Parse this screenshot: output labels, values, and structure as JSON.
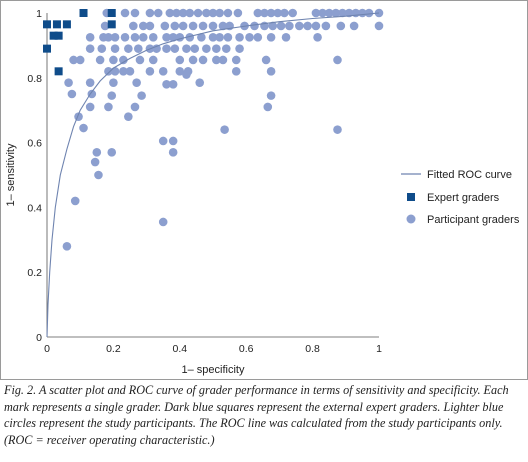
{
  "chart_data": {
    "type": "scatter",
    "xlabel": "1– specificity",
    "ylabel": "1– sensitivity",
    "xlim": [
      0,
      1
    ],
    "ylim": [
      0,
      1
    ],
    "x_ticks": [
      "0",
      "0.2",
      "0.4",
      "0.6",
      "0.8",
      "1"
    ],
    "y_ticks": [
      "0",
      "0.2",
      "0.4",
      "0.6",
      "0.8",
      "1"
    ],
    "grid": false,
    "legend_position": "right",
    "series": [
      {
        "name": "Fitted ROC curve",
        "kind": "line",
        "color": "#6f84b0",
        "points": [
          [
            0,
            0
          ],
          [
            0.003,
            0.1
          ],
          [
            0.008,
            0.2
          ],
          [
            0.015,
            0.3
          ],
          [
            0.025,
            0.4
          ],
          [
            0.04,
            0.5
          ],
          [
            0.06,
            0.58
          ],
          [
            0.08,
            0.65
          ],
          [
            0.1,
            0.7
          ],
          [
            0.13,
            0.75
          ],
          [
            0.16,
            0.79
          ],
          [
            0.2,
            0.83
          ],
          [
            0.25,
            0.86
          ],
          [
            0.3,
            0.885
          ],
          [
            0.35,
            0.905
          ],
          [
            0.4,
            0.92
          ],
          [
            0.5,
            0.945
          ],
          [
            0.6,
            0.96
          ],
          [
            0.7,
            0.973
          ],
          [
            0.8,
            0.983
          ],
          [
            0.9,
            0.99
          ],
          [
            1.0,
            1.0
          ]
        ]
      },
      {
        "name": "Expert graders",
        "kind": "square",
        "color": "#0f4c8a",
        "points": [
          [
            0.0,
            0.965
          ],
          [
            0.03,
            0.965
          ],
          [
            0.06,
            0.965
          ],
          [
            0.11,
            1.0
          ],
          [
            0.195,
            1.0
          ],
          [
            0.195,
            0.965
          ],
          [
            0.02,
            0.93
          ],
          [
            0.035,
            0.93
          ],
          [
            0.0,
            0.89
          ],
          [
            0.035,
            0.82
          ]
        ]
      },
      {
        "name": "Participant graders",
        "kind": "circle",
        "color": "#8c9fcf",
        "points": [
          [
            0.06,
            0.28
          ],
          [
            0.085,
            0.42
          ],
          [
            0.155,
            0.5
          ],
          [
            0.145,
            0.54
          ],
          [
            0.15,
            0.57
          ],
          [
            0.195,
            0.57
          ],
          [
            0.35,
            0.355
          ],
          [
            0.38,
            0.57
          ],
          [
            0.38,
            0.605
          ],
          [
            0.35,
            0.605
          ],
          [
            0.535,
            0.64
          ],
          [
            0.875,
            0.64
          ],
          [
            0.095,
            0.68
          ],
          [
            0.11,
            0.645
          ],
          [
            0.13,
            0.71
          ],
          [
            0.075,
            0.75
          ],
          [
            0.135,
            0.75
          ],
          [
            0.185,
            0.71
          ],
          [
            0.195,
            0.745
          ],
          [
            0.245,
            0.68
          ],
          [
            0.265,
            0.71
          ],
          [
            0.285,
            0.745
          ],
          [
            0.665,
            0.71
          ],
          [
            0.675,
            0.745
          ],
          [
            0.065,
            0.785
          ],
          [
            0.13,
            0.785
          ],
          [
            0.2,
            0.785
          ],
          [
            0.27,
            0.785
          ],
          [
            0.36,
            0.78
          ],
          [
            0.38,
            0.78
          ],
          [
            0.42,
            0.81
          ],
          [
            0.46,
            0.785
          ],
          [
            0.57,
            0.82
          ],
          [
            0.675,
            0.82
          ],
          [
            0.08,
            0.855
          ],
          [
            0.1,
            0.855
          ],
          [
            0.16,
            0.855
          ],
          [
            0.2,
            0.855
          ],
          [
            0.23,
            0.855
          ],
          [
            0.28,
            0.855
          ],
          [
            0.32,
            0.855
          ],
          [
            0.4,
            0.855
          ],
          [
            0.44,
            0.855
          ],
          [
            0.47,
            0.855
          ],
          [
            0.51,
            0.855
          ],
          [
            0.53,
            0.855
          ],
          [
            0.57,
            0.855
          ],
          [
            0.66,
            0.855
          ],
          [
            0.875,
            0.855
          ],
          [
            0.185,
            0.82
          ],
          [
            0.205,
            0.82
          ],
          [
            0.23,
            0.82
          ],
          [
            0.25,
            0.82
          ],
          [
            0.31,
            0.82
          ],
          [
            0.35,
            0.82
          ],
          [
            0.4,
            0.82
          ],
          [
            0.425,
            0.82
          ],
          [
            0.13,
            0.89
          ],
          [
            0.165,
            0.89
          ],
          [
            0.205,
            0.89
          ],
          [
            0.245,
            0.89
          ],
          [
            0.275,
            0.89
          ],
          [
            0.31,
            0.89
          ],
          [
            0.33,
            0.89
          ],
          [
            0.36,
            0.89
          ],
          [
            0.385,
            0.89
          ],
          [
            0.42,
            0.89
          ],
          [
            0.445,
            0.89
          ],
          [
            0.48,
            0.89
          ],
          [
            0.51,
            0.89
          ],
          [
            0.54,
            0.89
          ],
          [
            0.58,
            0.89
          ],
          [
            0.13,
            0.925
          ],
          [
            0.17,
            0.925
          ],
          [
            0.185,
            0.925
          ],
          [
            0.205,
            0.925
          ],
          [
            0.235,
            0.925
          ],
          [
            0.265,
            0.925
          ],
          [
            0.29,
            0.925
          ],
          [
            0.32,
            0.925
          ],
          [
            0.36,
            0.925
          ],
          [
            0.38,
            0.925
          ],
          [
            0.4,
            0.925
          ],
          [
            0.43,
            0.925
          ],
          [
            0.465,
            0.925
          ],
          [
            0.5,
            0.925
          ],
          [
            0.52,
            0.925
          ],
          [
            0.545,
            0.925
          ],
          [
            0.58,
            0.925
          ],
          [
            0.61,
            0.925
          ],
          [
            0.635,
            0.925
          ],
          [
            0.675,
            0.925
          ],
          [
            0.72,
            0.925
          ],
          [
            0.815,
            0.925
          ],
          [
            0.175,
            0.96
          ],
          [
            0.26,
            0.96
          ],
          [
            0.29,
            0.96
          ],
          [
            0.31,
            0.96
          ],
          [
            0.355,
            0.96
          ],
          [
            0.385,
            0.96
          ],
          [
            0.41,
            0.96
          ],
          [
            0.44,
            0.96
          ],
          [
            0.47,
            0.96
          ],
          [
            0.5,
            0.96
          ],
          [
            0.53,
            0.96
          ],
          [
            0.55,
            0.96
          ],
          [
            0.595,
            0.96
          ],
          [
            0.625,
            0.96
          ],
          [
            0.655,
            0.96
          ],
          [
            0.68,
            0.96
          ],
          [
            0.705,
            0.96
          ],
          [
            0.73,
            0.96
          ],
          [
            0.76,
            0.96
          ],
          [
            0.785,
            0.96
          ],
          [
            0.81,
            0.96
          ],
          [
            0.84,
            0.96
          ],
          [
            0.885,
            0.96
          ],
          [
            0.925,
            0.96
          ],
          [
            1.0,
            0.96
          ],
          [
            0.18,
            1.0
          ],
          [
            0.235,
            1.0
          ],
          [
            0.265,
            1.0
          ],
          [
            0.31,
            1.0
          ],
          [
            0.335,
            1.0
          ],
          [
            0.37,
            1.0
          ],
          [
            0.39,
            1.0
          ],
          [
            0.41,
            1.0
          ],
          [
            0.43,
            1.0
          ],
          [
            0.455,
            1.0
          ],
          [
            0.48,
            1.0
          ],
          [
            0.5,
            1.0
          ],
          [
            0.52,
            1.0
          ],
          [
            0.545,
            1.0
          ],
          [
            0.575,
            1.0
          ],
          [
            0.635,
            1.0
          ],
          [
            0.655,
            1.0
          ],
          [
            0.675,
            1.0
          ],
          [
            0.695,
            1.0
          ],
          [
            0.715,
            1.0
          ],
          [
            0.74,
            1.0
          ],
          [
            0.81,
            1.0
          ],
          [
            0.83,
            1.0
          ],
          [
            0.85,
            1.0
          ],
          [
            0.87,
            1.0
          ],
          [
            0.89,
            1.0
          ],
          [
            0.91,
            1.0
          ],
          [
            0.93,
            1.0
          ],
          [
            0.95,
            1.0
          ],
          [
            0.97,
            1.0
          ],
          [
            1.0,
            1.0
          ]
        ]
      }
    ]
  },
  "caption": "Fig. 2. A scatter plot and ROC curve of grader performance in terms of sensitivity and specificity. Each mark represents a single grader. Dark blue squares represent the external expert graders. Lighter blue circles represent the study participants. The ROC line was calculated from the study participants only. (ROC = receiver operating characteristic.)"
}
